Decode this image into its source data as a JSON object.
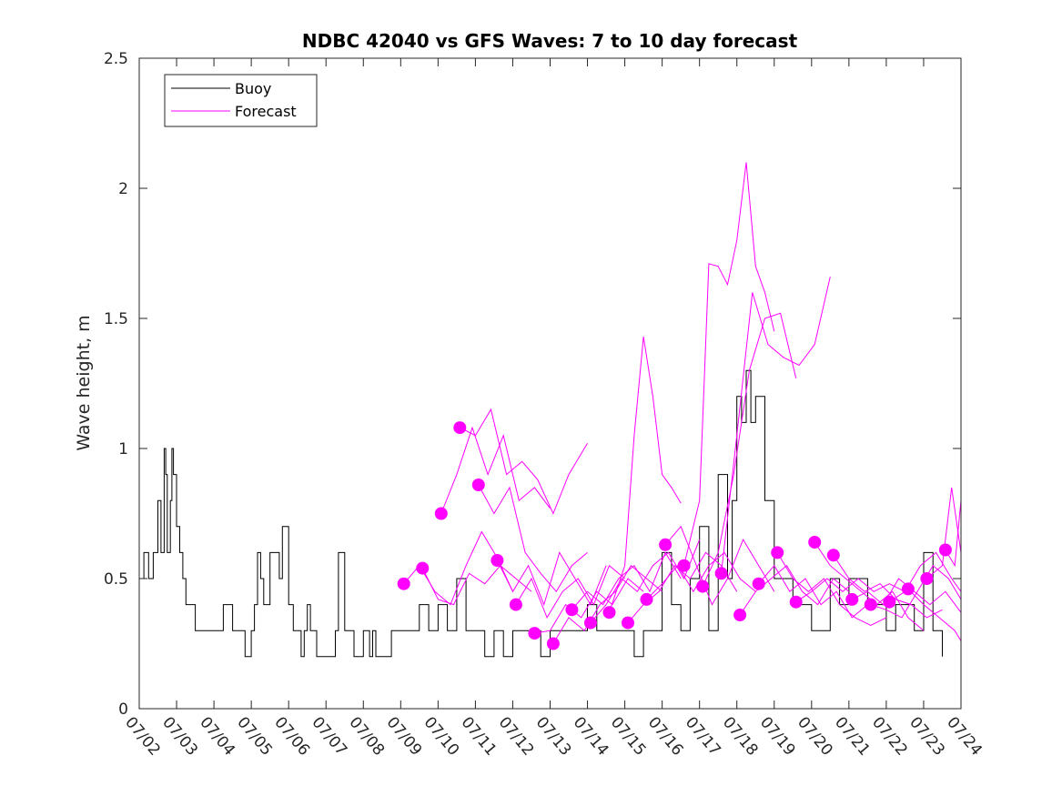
{
  "chart_data": {
    "type": "line",
    "title": "NDBC 42040 vs GFS Waves: 7 to 10 day forecast",
    "xlabel": "",
    "ylabel": "Wave height, m",
    "ylim": [
      0,
      2.5
    ],
    "xlim": [
      "07/02",
      "07/24"
    ],
    "yticks": [
      "0",
      "0.5",
      "1",
      "1.5",
      "2",
      "2.5"
    ],
    "xticks": [
      "07/02",
      "07/03",
      "07/04",
      "07/05",
      "07/06",
      "07/07",
      "07/08",
      "07/09",
      "07/10",
      "07/11",
      "07/12",
      "07/13",
      "07/14",
      "07/15",
      "07/16",
      "07/17",
      "07/18",
      "07/19",
      "07/20",
      "07/21",
      "07/22",
      "07/23",
      "07/24"
    ],
    "grid": false,
    "legend": {
      "position": "top-left",
      "entries": [
        {
          "label": "Buoy",
          "color": "#000000"
        },
        {
          "label": "Forecast",
          "color": "#ff00ff"
        }
      ]
    },
    "series": [
      {
        "name": "Buoy",
        "color": "#000000",
        "x": [
          "07/02 00:00",
          "07/02 03:00",
          "07/02 06:00",
          "07/02 09:00",
          "07/02 12:00",
          "07/02 14:00",
          "07/02 16:00",
          "07/02 17:00",
          "07/02 18:00",
          "07/02 20:00",
          "07/02 21:00",
          "07/02 22:00",
          "07/03 00:00",
          "07/03 02:00",
          "07/03 04:00",
          "07/03 06:00",
          "07/03 08:00",
          "07/03 10:00",
          "07/03 12:00",
          "07/03 14:00",
          "07/03 18:00",
          "07/04 00:00",
          "07/04 06:00",
          "07/04 12:00",
          "07/04 18:00",
          "07/04 20:00",
          "07/05 00:00",
          "07/05 02:00",
          "07/05 04:00",
          "07/05 06:00",
          "07/05 08:00",
          "07/05 12:00",
          "07/05 18:00",
          "07/05 20:00",
          "07/06 00:00",
          "07/06 03:00",
          "07/06 06:00",
          "07/06 08:00",
          "07/06 10:00",
          "07/06 12:00",
          "07/06 14:00",
          "07/06 18:00",
          "07/07 00:00",
          "07/07 06:00",
          "07/07 08:00",
          "07/07 12:00",
          "07/07 18:00",
          "07/08 00:00",
          "07/08 04:00",
          "07/08 06:00",
          "07/08 08:00",
          "07/08 12:00",
          "07/08 18:00",
          "07/09 00:00",
          "07/09 06:00",
          "07/09 12:00",
          "07/09 18:00",
          "07/10 00:00",
          "07/10 06:00",
          "07/10 12:00",
          "07/10 18:00",
          "07/11 00:00",
          "07/11 06:00",
          "07/11 12:00",
          "07/11 18:00",
          "07/12 00:00",
          "07/12 06:00",
          "07/12 12:00",
          "07/12 18:00",
          "07/13 00:00",
          "07/13 06:00",
          "07/13 12:00",
          "07/13 18:00",
          "07/14 00:00",
          "07/14 06:00",
          "07/14 12:00",
          "07/14 18:00",
          "07/15 00:00",
          "07/15 06:00",
          "07/15 12:00",
          "07/15 18:00",
          "07/16 00:00",
          "07/16 06:00",
          "07/16 12:00",
          "07/16 18:00",
          "07/17 00:00",
          "07/17 06:00",
          "07/17 12:00",
          "07/17 18:00",
          "07/17 21:00",
          "07/18 00:00",
          "07/18 03:00",
          "07/18 06:00",
          "07/18 09:00",
          "07/18 12:00",
          "07/18 18:00",
          "07/19 00:00",
          "07/19 06:00",
          "07/19 12:00",
          "07/19 18:00",
          "07/20 00:00",
          "07/20 06:00",
          "07/20 12:00",
          "07/20 18:00",
          "07/21 00:00",
          "07/21 06:00",
          "07/21 12:00",
          "07/21 18:00",
          "07/22 00:00",
          "07/22 06:00",
          "07/22 12:00",
          "07/22 18:00",
          "07/23 00:00",
          "07/23 06:00",
          "07/23 12:00"
        ],
        "values": [
          0.5,
          0.6,
          0.5,
          0.6,
          0.8,
          0.6,
          1.0,
          0.9,
          0.6,
          0.8,
          1.0,
          0.9,
          0.7,
          0.6,
          0.5,
          0.4,
          0.4,
          0.4,
          0.3,
          0.3,
          0.3,
          0.3,
          0.4,
          0.3,
          0.3,
          0.2,
          0.3,
          0.4,
          0.6,
          0.5,
          0.4,
          0.6,
          0.5,
          0.7,
          0.4,
          0.3,
          0.3,
          0.2,
          0.3,
          0.4,
          0.3,
          0.2,
          0.2,
          0.3,
          0.6,
          0.3,
          0.2,
          0.3,
          0.2,
          0.3,
          0.2,
          0.2,
          0.3,
          0.3,
          0.3,
          0.4,
          0.3,
          0.4,
          0.3,
          0.5,
          0.3,
          0.3,
          0.2,
          0.3,
          0.2,
          0.3,
          0.3,
          0.3,
          0.2,
          0.3,
          0.3,
          0.3,
          0.3,
          0.4,
          0.3,
          0.3,
          0.3,
          0.3,
          0.2,
          0.3,
          0.3,
          0.6,
          0.4,
          0.3,
          0.5,
          0.7,
          0.3,
          0.9,
          0.5,
          0.8,
          1.2,
          1.1,
          1.3,
          1.1,
          1.2,
          0.8,
          0.5,
          0.5,
          0.4,
          0.4,
          0.3,
          0.3,
          0.5,
          0.4,
          0.5,
          0.5,
          0.4,
          0.4,
          0.3,
          0.4,
          0.4,
          0.3,
          0.6,
          0.3,
          0.2
        ]
      },
      {
        "name": "",
        "color": "#ff00ff",
        "x": [
          "07/09 02:00",
          "07/09 12:00",
          "07/09 22:00",
          "07/10 08:00",
          "07/10 18:00",
          "07/11 04:00",
          "07/11 14:00",
          "07/12 00:00"
        ],
        "values": [
          0.48,
          0.55,
          0.45,
          0.4,
          0.55,
          0.68,
          0.58,
          0.45
        ]
      },
      {
        "name": "",
        "color": "#ff00ff",
        "x": [
          "07/09 14:00",
          "07/10 00:00",
          "07/10 10:00",
          "07/10 20:00",
          "07/11 06:00",
          "07/11 16:00",
          "07/12 02:00",
          "07/12 12:00"
        ],
        "values": [
          0.54,
          0.42,
          0.4,
          0.52,
          0.48,
          0.55,
          0.5,
          0.45
        ]
      },
      {
        "name": "",
        "color": "#ff00ff",
        "x": [
          "07/10 02:00",
          "07/10 12:00",
          "07/10 22:00",
          "07/11 08:00",
          "07/11 18:00",
          "07/12 04:00",
          "07/12 14:00",
          "07/13 00:00"
        ],
        "values": [
          0.75,
          0.9,
          1.08,
          0.9,
          1.05,
          0.8,
          0.85,
          0.77
        ]
      },
      {
        "name": "",
        "color": "#ff00ff",
        "x": [
          "07/10 14:00",
          "07/11 00:00",
          "07/11 10:00",
          "07/11 20:00",
          "07/12 06:00",
          "07/12 16:00",
          "07/13 02:00",
          "07/13 12:00",
          "07/14 00:00"
        ],
        "values": [
          1.08,
          1.05,
          1.15,
          0.9,
          0.95,
          0.88,
          0.75,
          0.9,
          1.02
        ]
      },
      {
        "name": "",
        "color": "#ff00ff",
        "x": [
          "07/11 02:00",
          "07/11 12:00",
          "07/11 22:00",
          "07/12 08:00",
          "07/12 18:00",
          "07/13 04:00",
          "07/13 14:00",
          "07/14 00:00"
        ],
        "values": [
          0.86,
          0.75,
          0.85,
          0.6,
          0.52,
          0.45,
          0.55,
          0.6
        ]
      },
      {
        "name": "",
        "color": "#ff00ff",
        "x": [
          "07/11 14:00",
          "07/12 00:00",
          "07/12 10:00",
          "07/12 20:00",
          "07/13 06:00",
          "07/13 16:00",
          "07/14 02:00",
          "07/14 12:00"
        ],
        "values": [
          0.57,
          0.45,
          0.55,
          0.4,
          0.6,
          0.5,
          0.4,
          0.55
        ]
      },
      {
        "name": "",
        "color": "#ff00ff",
        "x": [
          "07/12 02:00",
          "07/12 12:00",
          "07/12 22:00",
          "07/13 08:00",
          "07/13 18:00",
          "07/14 04:00",
          "07/14 14:00",
          "07/15 00:00"
        ],
        "values": [
          0.4,
          0.5,
          0.35,
          0.45,
          0.5,
          0.4,
          0.55,
          0.5
        ]
      },
      {
        "name": "",
        "color": "#ff00ff",
        "x": [
          "07/12 14:00",
          "07/13 00:00",
          "07/13 10:00",
          "07/13 20:00",
          "07/14 06:00",
          "07/14 16:00",
          "07/15 02:00",
          "07/15 12:00"
        ],
        "values": [
          0.29,
          0.3,
          0.4,
          0.35,
          0.45,
          0.4,
          0.5,
          0.45
        ]
      },
      {
        "name": "",
        "color": "#ff00ff",
        "x": [
          "07/13 02:00",
          "07/13 12:00",
          "07/13 22:00",
          "07/14 08:00",
          "07/14 18:00",
          "07/15 04:00",
          "07/15 14:00",
          "07/16 00:00"
        ],
        "values": [
          0.25,
          0.35,
          0.3,
          0.4,
          0.45,
          0.55,
          0.5,
          0.45
        ]
      },
      {
        "name": "",
        "color": "#ff00ff",
        "x": [
          "07/13 14:00",
          "07/14 00:00",
          "07/14 10:00",
          "07/14 20:00",
          "07/15 06:00",
          "07/15 16:00",
          "07/16 02:00",
          "07/16 12:00"
        ],
        "values": [
          0.38,
          0.45,
          0.4,
          0.5,
          0.55,
          0.45,
          0.6,
          0.5
        ]
      },
      {
        "name": "",
        "color": "#ff00ff",
        "x": [
          "07/14 02:00",
          "07/14 12:00",
          "07/14 22:00",
          "07/15 08:00",
          "07/15 18:00",
          "07/16 04:00",
          "07/16 14:00",
          "07/17 00:00"
        ],
        "values": [
          0.33,
          0.4,
          0.5,
          0.45,
          0.55,
          0.6,
          0.5,
          0.65
        ]
      },
      {
        "name": "",
        "color": "#ff00ff",
        "x": [
          "07/14 14:00",
          "07/15 00:00",
          "07/15 06:00",
          "07/15 12:00",
          "07/15 18:00",
          "07/16 00:00",
          "07/16 06:00",
          "07/16 12:00"
        ],
        "values": [
          0.37,
          0.55,
          1.05,
          1.43,
          1.2,
          0.9,
          0.85,
          0.79
        ]
      },
      {
        "name": "",
        "color": "#ff00ff",
        "x": [
          "07/15 02:00",
          "07/15 12:00",
          "07/15 22:00",
          "07/16 08:00",
          "07/16 18:00",
          "07/17 04:00",
          "07/17 14:00",
          "07/18 00:00"
        ],
        "values": [
          0.33,
          0.4,
          0.45,
          0.55,
          0.5,
          0.6,
          0.55,
          0.45
        ]
      },
      {
        "name": "",
        "color": "#ff00ff",
        "x": [
          "07/15 14:00",
          "07/16 00:00",
          "07/16 10:00",
          "07/16 20:00",
          "07/17 06:00",
          "07/17 16:00",
          "07/18 02:00",
          "07/18 12:00"
        ],
        "values": [
          0.42,
          0.48,
          0.55,
          0.45,
          0.55,
          0.6,
          0.5,
          0.45
        ]
      },
      {
        "name": "",
        "color": "#ff00ff",
        "x": [
          "07/16 02:00",
          "07/16 12:00",
          "07/16 22:00",
          "07/17 08:00",
          "07/17 18:00",
          "07/18 04:00",
          "07/18 14:00",
          "07/19 00:00"
        ],
        "values": [
          0.63,
          0.7,
          0.55,
          0.4,
          0.5,
          0.65,
          0.55,
          0.45
        ]
      },
      {
        "name": "",
        "color": "#ff00ff",
        "x": [
          "07/16 14:00",
          "07/17 00:00",
          "07/17 06:00",
          "07/17 12:00",
          "07/17 18:00",
          "07/18 00:00",
          "07/18 06:00",
          "07/18 12:00",
          "07/18 18:00",
          "07/19 00:00"
        ],
        "values": [
          0.55,
          0.8,
          1.71,
          1.7,
          1.63,
          1.8,
          2.1,
          1.7,
          1.6,
          1.45
        ]
      },
      {
        "name": "",
        "color": "#ff00ff",
        "x": [
          "07/17 02:00",
          "07/17 12:00",
          "07/17 22:00",
          "07/18 08:00",
          "07/18 18:00",
          "07/19 04:00",
          "07/19 14:00"
        ],
        "values": [
          0.47,
          0.6,
          0.9,
          1.3,
          1.5,
          1.52,
          1.27
        ]
      },
      {
        "name": "",
        "color": "#ff00ff",
        "x": [
          "07/17 14:00",
          "07/18 00:00",
          "07/18 10:00",
          "07/18 20:00",
          "07/19 06:00",
          "07/19 16:00",
          "07/20 02:00",
          "07/20 12:00"
        ],
        "values": [
          0.52,
          1.05,
          1.6,
          1.4,
          1.35,
          1.32,
          1.4,
          1.66
        ]
      },
      {
        "name": "",
        "color": "#ff00ff",
        "x": [
          "07/18 02:00",
          "07/18 12:00",
          "07/18 22:00",
          "07/19 08:00",
          "07/19 18:00",
          "07/20 04:00",
          "07/20 14:00",
          "07/21 00:00"
        ],
        "values": [
          0.36,
          0.45,
          0.5,
          0.55,
          0.45,
          0.4,
          0.5,
          0.45
        ]
      },
      {
        "name": "",
        "color": "#ff00ff",
        "x": [
          "07/18 14:00",
          "07/19 00:00",
          "07/19 10:00",
          "07/19 20:00",
          "07/20 06:00",
          "07/20 16:00",
          "07/21 02:00",
          "07/21 12:00"
        ],
        "values": [
          0.48,
          0.55,
          0.45,
          0.5,
          0.4,
          0.45,
          0.35,
          0.4
        ]
      },
      {
        "name": "",
        "color": "#ff00ff",
        "x": [
          "07/19 02:00",
          "07/19 12:00",
          "07/19 22:00",
          "07/20 08:00",
          "07/20 18:00",
          "07/21 04:00",
          "07/21 14:00",
          "07/22 00:00"
        ],
        "values": [
          0.6,
          0.5,
          0.45,
          0.5,
          0.4,
          0.35,
          0.32,
          0.35
        ]
      },
      {
        "name": "",
        "color": "#ff00ff",
        "x": [
          "07/19 14:00",
          "07/20 00:00",
          "07/20 10:00",
          "07/20 20:00",
          "07/21 06:00",
          "07/21 16:00",
          "07/22 02:00",
          "07/22 12:00"
        ],
        "values": [
          0.41,
          0.45,
          0.5,
          0.45,
          0.5,
          0.45,
          0.48,
          0.45
        ]
      },
      {
        "name": "",
        "color": "#ff00ff",
        "x": [
          "07/20 02:00",
          "07/20 12:00",
          "07/20 22:00",
          "07/21 08:00",
          "07/21 18:00",
          "07/22 04:00",
          "07/22 14:00",
          "07/23 00:00"
        ],
        "values": [
          0.64,
          0.55,
          0.5,
          0.45,
          0.4,
          0.45,
          0.35,
          0.3
        ]
      },
      {
        "name": "",
        "color": "#ff00ff",
        "x": [
          "07/20 14:00",
          "07/21 00:00",
          "07/21 10:00",
          "07/21 20:00",
          "07/22 06:00",
          "07/22 16:00",
          "07/23 02:00",
          "07/23 12:00"
        ],
        "values": [
          0.59,
          0.5,
          0.45,
          0.48,
          0.42,
          0.4,
          0.35,
          0.38
        ]
      },
      {
        "name": "",
        "color": "#ff00ff",
        "x": [
          "07/21 02:00",
          "07/21 12:00",
          "07/21 22:00",
          "07/22 08:00",
          "07/22 18:00",
          "07/23 04:00",
          "07/23 14:00",
          "07/24 00:00"
        ],
        "values": [
          0.42,
          0.45,
          0.4,
          0.5,
          0.45,
          0.4,
          0.45,
          0.37
        ]
      },
      {
        "name": "",
        "color": "#ff00ff",
        "x": [
          "07/21 14:00",
          "07/22 00:00",
          "07/22 10:00",
          "07/22 20:00",
          "07/23 06:00",
          "07/23 16:00",
          "07/24 00:00"
        ],
        "values": [
          0.4,
          0.38,
          0.35,
          0.45,
          0.55,
          0.5,
          0.42
        ]
      },
      {
        "name": "",
        "color": "#ff00ff",
        "x": [
          "07/22 02:00",
          "07/22 12:00",
          "07/22 22:00",
          "07/23 08:00",
          "07/23 18:00",
          "07/24 00:00"
        ],
        "values": [
          0.41,
          0.45,
          0.55,
          0.6,
          0.5,
          0.45
        ]
      },
      {
        "name": "",
        "color": "#ff00ff",
        "x": [
          "07/22 14:00",
          "07/23 00:00",
          "07/23 10:00",
          "07/23 20:00",
          "07/24 00:00"
        ],
        "values": [
          0.46,
          0.4,
          0.35,
          0.3,
          0.26
        ]
      },
      {
        "name": "",
        "color": "#ff00ff",
        "x": [
          "07/23 02:00",
          "07/23 12:00",
          "07/23 18:00",
          "07/24 00:00"
        ],
        "values": [
          0.5,
          0.55,
          0.85,
          0.6
        ]
      },
      {
        "name": "",
        "color": "#ff00ff",
        "x": [
          "07/23 14:00",
          "07/23 20:00",
          "07/24 00:00"
        ],
        "values": [
          0.61,
          0.55,
          0.8
        ]
      }
    ]
  }
}
